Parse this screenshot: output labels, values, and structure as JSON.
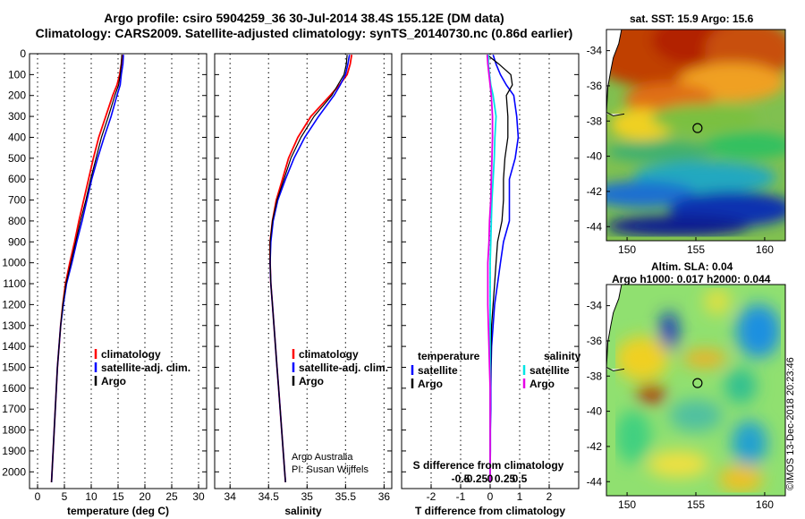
{
  "header": {
    "title_line1": "Argo profile: csiro 5904259_36 30-Jul-2014 38.4S 155.12E (DM data)",
    "title_line2": "Climatology: CARS2009. Satellite-adjusted climatology: synTS_20140730.nc (0.86d earlier)"
  },
  "colors": {
    "climatology": "#ff0000",
    "satellite": "#0000ff",
    "argo": "#000000",
    "sat_salinity": "#00e5e5",
    "argo_salinity": "#e600e6"
  },
  "sst_map": {
    "title": "sat. SST: 15.9 Argo: 15.6",
    "lat_ticks": [
      "-34",
      "-36",
      "-38",
      "-40",
      "-42",
      "-44"
    ],
    "lon_ticks": [
      "150",
      "155",
      "160"
    ]
  },
  "sla_map": {
    "title_line1": "Altim. SLA: 0.04",
    "title_line2": "Argo h1000: 0.017 h2000: 0.044",
    "lat_ticks": [
      "-34",
      "-36",
      "-38",
      "-40",
      "-42",
      "-44"
    ],
    "lon_ticks": [
      "150",
      "155",
      "160"
    ]
  },
  "credit": {
    "line1": "Argo Australia",
    "line2": "PI: Susan Wijffels"
  },
  "stamp": "©IMOS 13-Dec-2018 20:23:46",
  "chart_data": [
    {
      "type": "line",
      "title": "temperature",
      "xlabel": "temperature (deg C)",
      "ylabel": "depth",
      "xlim": [
        -1.5,
        31.5
      ],
      "ylim": [
        2080,
        0
      ],
      "x_ticks": [
        0,
        5,
        10,
        15,
        20,
        25,
        30
      ],
      "x_tick_labels": [
        "0",
        "5",
        "10",
        "15",
        "20",
        "25",
        "30"
      ],
      "y_ticks": [
        0,
        100,
        200,
        300,
        400,
        500,
        600,
        700,
        800,
        900,
        1000,
        1100,
        1200,
        1300,
        1400,
        1500,
        1600,
        1700,
        1800,
        1900,
        2000
      ],
      "y_tick_labels": [
        "0",
        "100",
        "200",
        "300",
        "400",
        "500",
        "600",
        "700",
        "800",
        "900",
        "1000",
        "1100",
        "1200",
        "1300",
        "1400",
        "1500",
        "1600",
        "1700",
        "1800",
        "1900",
        "2000"
      ],
      "legend": [
        "climatology",
        "satellite-adj. clim.",
        "Argo"
      ],
      "depth": [
        5,
        50,
        100,
        150,
        200,
        300,
        400,
        500,
        600,
        700,
        800,
        900,
        1000,
        1100,
        1200,
        1300,
        1400,
        1500,
        1600,
        1700,
        1800,
        1900,
        2000,
        2050
      ],
      "series": [
        {
          "name": "climatology",
          "values": [
            15.8,
            15.6,
            15.3,
            14.8,
            14.0,
            12.7,
            11.4,
            10.4,
            9.5,
            8.6,
            7.7,
            6.9,
            6.0,
            5.2,
            4.7,
            4.3,
            4.0,
            3.7,
            3.5,
            3.3,
            3.1,
            2.9,
            2.7,
            2.6
          ]
        },
        {
          "name": "satellite-adj. clim.",
          "values": [
            16.0,
            15.9,
            15.6,
            15.4,
            14.8,
            13.7,
            12.4,
            11.2,
            10.1,
            9.2,
            8.3,
            7.3,
            6.4,
            5.4,
            4.8,
            4.3,
            4.0,
            3.7,
            3.5,
            3.3,
            3.1,
            2.9,
            2.7,
            2.6
          ]
        },
        {
          "name": "Argo",
          "values": [
            15.7,
            15.6,
            15.4,
            15.1,
            14.4,
            13.2,
            11.9,
            10.9,
            9.9,
            9.0,
            8.0,
            7.1,
            6.2,
            5.3,
            4.7,
            4.3,
            4.0,
            3.7,
            3.5,
            3.3,
            3.1,
            2.9,
            2.7,
            2.6
          ]
        }
      ]
    },
    {
      "type": "line",
      "title": "salinity",
      "xlabel": "salinity",
      "xlim": [
        33.8,
        36.1
      ],
      "ylim": [
        2080,
        0
      ],
      "x_ticks": [
        34,
        34.5,
        35,
        35.5,
        36
      ],
      "x_tick_labels": [
        "34",
        "34.5",
        "35",
        "35.5",
        "36"
      ],
      "legend": [
        "climatology",
        "satellite-adj. clim.",
        "Argo"
      ],
      "depth": [
        5,
        50,
        100,
        150,
        200,
        300,
        400,
        500,
        600,
        700,
        800,
        900,
        1000,
        1100,
        1200,
        1300,
        1400,
        1500,
        1600,
        1700,
        1800,
        1900,
        2000,
        2050
      ],
      "series": [
        {
          "name": "climatology",
          "values": [
            35.58,
            35.56,
            35.52,
            35.42,
            35.3,
            35.05,
            34.88,
            34.76,
            34.68,
            34.6,
            34.55,
            34.52,
            34.52,
            34.53,
            34.55,
            34.57,
            34.59,
            34.61,
            34.63,
            34.65,
            34.67,
            34.69,
            34.71,
            34.72
          ]
        },
        {
          "name": "satellite-adj. clim.",
          "values": [
            35.55,
            35.53,
            35.5,
            35.43,
            35.35,
            35.15,
            34.97,
            34.83,
            34.72,
            34.62,
            34.56,
            34.53,
            34.52,
            34.53,
            34.55,
            34.57,
            34.59,
            34.61,
            34.63,
            34.65,
            34.67,
            34.69,
            34.71,
            34.72
          ]
        },
        {
          "name": "Argo",
          "values": [
            35.52,
            35.51,
            35.48,
            35.4,
            35.32,
            35.09,
            34.92,
            34.79,
            34.7,
            34.61,
            34.55,
            34.52,
            34.52,
            34.53,
            34.55,
            34.57,
            34.59,
            34.61,
            34.63,
            34.65,
            34.67,
            34.69,
            34.71,
            34.72
          ]
        }
      ]
    },
    {
      "type": "line",
      "title": "differences from climatology",
      "xlabel": "T difference from climatology",
      "x2label": "S difference from climatology",
      "xlim": [
        -3,
        3
      ],
      "ylim": [
        2080,
        0
      ],
      "x_ticks": [
        -2,
        -1,
        0,
        1,
        2
      ],
      "x_tick_labels": [
        "-2",
        "-1",
        "0",
        "1",
        "2"
      ],
      "s_ticks": [
        -0.5,
        -0.25,
        0,
        0.25,
        0.5
      ],
      "s_tick_labels": [
        "-0.5",
        "-0.25",
        "0",
        "0.25",
        "0.5"
      ],
      "legend_temperature_title": "temperature",
      "legend_salinity_title": "salinity",
      "legend_temperature": [
        "satellite",
        "Argo"
      ],
      "legend_salinity": [
        "satellite",
        "Argo"
      ],
      "depth": [
        5,
        50,
        100,
        150,
        200,
        300,
        400,
        500,
        600,
        700,
        800,
        900,
        1000,
        1100,
        1200,
        1300,
        1400,
        1500,
        1600,
        1700,
        1800,
        1900,
        2000,
        2050
      ],
      "series": [
        {
          "name": "temperature satellite",
          "values": [
            0.1,
            0.2,
            0.35,
            0.55,
            0.8,
            0.9,
            0.95,
            0.85,
            0.65,
            0.65,
            0.65,
            0.45,
            0.35,
            0.25,
            0.15,
            0.1,
            0.05,
            0.03,
            0.02,
            0.02,
            0.01,
            0.01,
            0.0,
            0.0
          ]
        },
        {
          "name": "temperature Argo",
          "values": [
            -0.1,
            0.3,
            0.7,
            0.75,
            0.55,
            0.6,
            0.6,
            0.5,
            0.45,
            0.45,
            0.4,
            0.25,
            0.2,
            0.15,
            0.1,
            0.05,
            0.03,
            0.02,
            0.01,
            0.01,
            0.0,
            0.0,
            0.0,
            0.0
          ]
        },
        {
          "name": "salinity satellite",
          "values": [
            -0.03,
            -0.03,
            -0.01,
            0.01,
            0.05,
            0.1,
            0.08,
            0.07,
            0.05,
            0.03,
            0.02,
            0.01,
            0.0,
            0.0,
            0.0,
            0.0,
            0.0,
            0.0,
            0.0,
            0.0,
            0.0,
            0.0,
            0.0,
            0.0
          ]
        },
        {
          "name": "salinity Argo",
          "values": [
            -0.05,
            -0.04,
            -0.02,
            0.0,
            0.02,
            0.04,
            0.04,
            0.03,
            0.02,
            0.01,
            -0.01,
            -0.02,
            -0.04,
            -0.04,
            -0.04,
            -0.03,
            -0.02,
            -0.01,
            0.0,
            0.0,
            0.0,
            0.0,
            0.0,
            0.0
          ]
        }
      ]
    },
    {
      "type": "heatmap",
      "title": "sat. SST: 15.9 Argo: 15.6",
      "lon_range": [
        148.5,
        161.5
      ],
      "lat_range": [
        -44.8,
        -32.8
      ],
      "argo_position": {
        "lon": 155.12,
        "lat": -38.4
      }
    },
    {
      "type": "heatmap",
      "title": "Altim. SLA: 0.04",
      "lon_range": [
        148.5,
        161.5
      ],
      "lat_range": [
        -44.8,
        -32.8
      ],
      "argo_position": {
        "lon": 155.12,
        "lat": -38.4
      }
    }
  ]
}
